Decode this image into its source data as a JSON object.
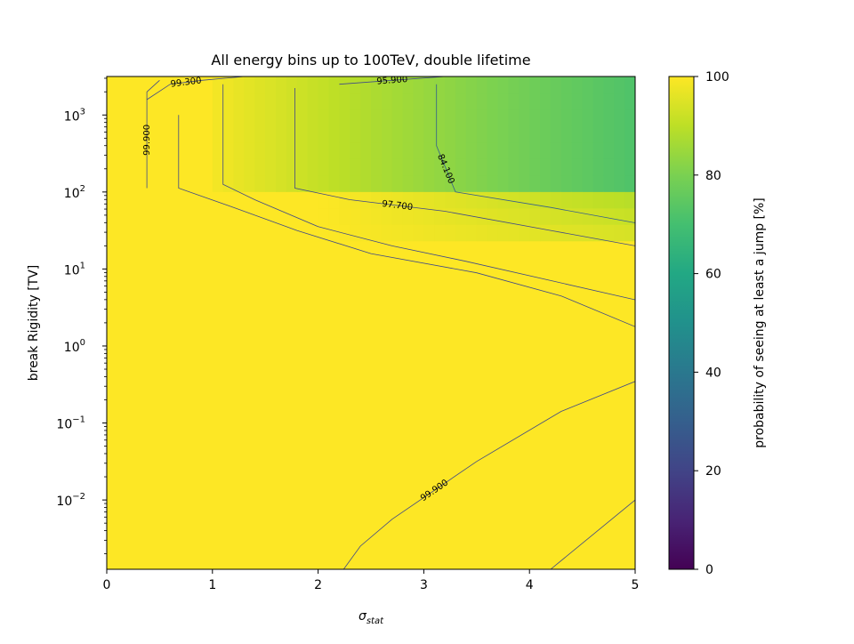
{
  "chart_data": {
    "type": "heatmap",
    "title": "All energy bins up to 100TeV, double lifetime",
    "xlabel_main": "σ",
    "xlabel_sub": "stat",
    "ylabel": "break Rigidity [TV]",
    "xlim": [
      0,
      5
    ],
    "ylim_log10": [
      -2.9,
      3.5
    ],
    "y_scale": "log",
    "x_ticks": [
      "0",
      "1",
      "2",
      "3",
      "4",
      "5"
    ],
    "y_ticks": [
      {
        "base": "10",
        "exp": "−2",
        "log10": -2
      },
      {
        "base": "10",
        "exp": "−1",
        "log10": -1
      },
      {
        "base": "10",
        "exp": "0",
        "log10": 0
      },
      {
        "base": "10",
        "exp": "1",
        "log10": 1
      },
      {
        "base": "10",
        "exp": "2",
        "log10": 2
      },
      {
        "base": "10",
        "exp": "3",
        "log10": 3
      }
    ],
    "colormap": "viridis",
    "colorbar": {
      "label": "probability of seeing at least a jump [%]",
      "range": [
        0,
        100
      ],
      "ticks": [
        "0",
        "20",
        "40",
        "60",
        "80",
        "100"
      ]
    },
    "heatmap_regions": [
      {
        "description": "plateau",
        "value": 100
      },
      {
        "x_from": 1.0,
        "x_to": 5.0,
        "log10y_from": 2.0,
        "log10y_to": 3.5,
        "value_at_x1": 99,
        "value_at_x5": 72
      },
      {
        "x_from": 2.0,
        "x_to": 5.0,
        "log10y_from": 1.3,
        "log10y_to": 2.0,
        "value_at_x2": 99,
        "value_at_x5": 88
      }
    ],
    "contours": [
      {
        "level": 84.1,
        "label": "84.100",
        "points": [
          [
            3.12,
            3.4
          ],
          [
            3.12,
            2.6
          ],
          [
            3.3,
            2.0
          ],
          [
            4.2,
            1.8
          ],
          [
            5.0,
            1.6
          ]
        ]
      },
      {
        "level": 95.9,
        "label": "95.900",
        "points": [
          [
            2.2,
            3.4
          ],
          [
            3.2,
            3.5
          ],
          [
            5.0,
            3.5
          ]
        ]
      },
      {
        "level": 97.7,
        "label": "97.700",
        "points": [
          [
            1.78,
            3.35
          ],
          [
            1.78,
            2.05
          ],
          [
            2.3,
            1.9
          ],
          [
            3.2,
            1.75
          ],
          [
            4.2,
            1.5
          ],
          [
            5.0,
            1.3
          ]
        ]
      },
      {
        "level": 99.3,
        "label": "99.300",
        "points": [
          [
            0.38,
            3.2
          ],
          [
            0.6,
            3.4
          ],
          [
            0.9,
            3.45
          ],
          [
            1.3,
            3.5
          ]
        ]
      },
      {
        "level": 99.3,
        "label": "",
        "points": [
          [
            0.68,
            3.0
          ],
          [
            0.68,
            2.05
          ],
          [
            1.2,
            1.8
          ],
          [
            1.8,
            1.5
          ],
          [
            2.5,
            1.2
          ],
          [
            3.5,
            0.95
          ],
          [
            4.3,
            0.65
          ],
          [
            5.0,
            0.25
          ]
        ]
      },
      {
        "level": 99.9,
        "label": "99.900",
        "points": [
          [
            0.38,
            2.05
          ],
          [
            0.38,
            3.3
          ],
          [
            0.5,
            3.45
          ]
        ]
      },
      {
        "level": 99.9,
        "label": "",
        "points": [
          [
            1.1,
            3.4
          ],
          [
            1.1,
            2.1
          ],
          [
            1.4,
            1.9
          ],
          [
            2.0,
            1.55
          ],
          [
            2.7,
            1.3
          ],
          [
            3.4,
            1.1
          ],
          [
            4.2,
            0.85
          ],
          [
            5.0,
            0.6
          ]
        ]
      },
      {
        "level": 99.9,
        "label": "99.900",
        "points": [
          [
            2.03,
            -3.3
          ],
          [
            2.4,
            -2.6
          ],
          [
            2.7,
            -2.25
          ],
          [
            3.5,
            -1.5
          ],
          [
            4.3,
            -0.85
          ],
          [
            5.0,
            -0.46
          ]
        ]
      },
      {
        "level": 99.3,
        "label": "99.300",
        "points": [
          [
            3.6,
            -3.3
          ],
          [
            4.2,
            -2.9
          ],
          [
            5.0,
            -2.0
          ]
        ]
      }
    ]
  }
}
